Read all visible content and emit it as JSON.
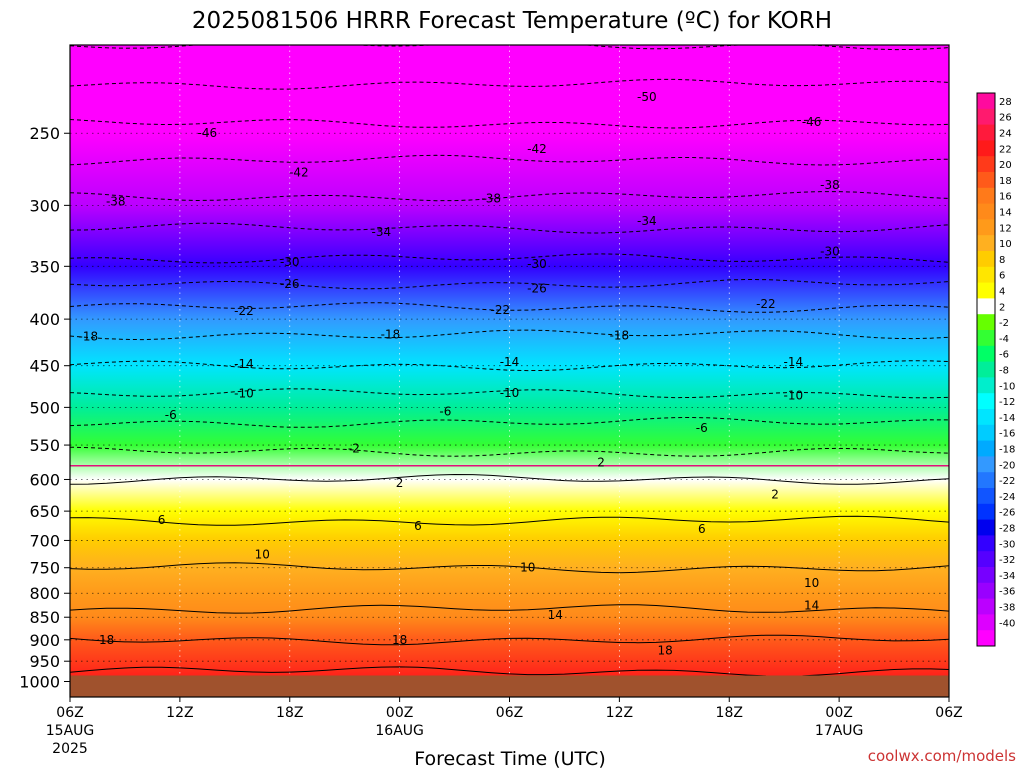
{
  "chart_data": {
    "type": "heatmap",
    "title": "2025081506 HRRR Forecast Temperature (ºC) for KORH",
    "xlabel": "Forecast Time (UTC)",
    "ylabel": "",
    "credit": "coolwx.com/models",
    "y_scale": "log-pressure",
    "ylim_hpa": [
      1040,
      200
    ],
    "y_ticks": [
      "250",
      "300",
      "350",
      "400",
      "450",
      "500",
      "550",
      "600",
      "650",
      "700",
      "750",
      "800",
      "850",
      "900",
      "950",
      "1000"
    ],
    "x_ticks": [
      {
        "hour": 0,
        "label": "06Z",
        "date": "15AUG",
        "year": "2025"
      },
      {
        "hour": 6,
        "label": "12Z"
      },
      {
        "hour": 12,
        "label": "18Z"
      },
      {
        "hour": 18,
        "label": "00Z",
        "date": "16AUG"
      },
      {
        "hour": 24,
        "label": "06Z"
      },
      {
        "hour": 30,
        "label": "12Z"
      },
      {
        "hour": 36,
        "label": "18Z"
      },
      {
        "hour": 42,
        "label": "00Z",
        "date": "17AUG"
      },
      {
        "hour": 48,
        "label": "06Z"
      }
    ],
    "xlim_hours": [
      0,
      48
    ],
    "ground_level_hpa": 985,
    "ground_color": "#a0522d",
    "temperature_profile": [
      {
        "p": 200,
        "t": -54
      },
      {
        "p": 250,
        "t": -45
      },
      {
        "p": 300,
        "t": -37
      },
      {
        "p": 350,
        "t": -29
      },
      {
        "p": 400,
        "t": -20
      },
      {
        "p": 450,
        "t": -14
      },
      {
        "p": 500,
        "t": -8
      },
      {
        "p": 550,
        "t": -3
      },
      {
        "p": 600,
        "t": 2
      },
      {
        "p": 650,
        "t": 5
      },
      {
        "p": 700,
        "t": 8
      },
      {
        "p": 750,
        "t": 10
      },
      {
        "p": 800,
        "t": 12
      },
      {
        "p": 850,
        "t": 15
      },
      {
        "p": 900,
        "t": 18
      },
      {
        "p": 950,
        "t": 21
      },
      {
        "p": 1000,
        "t": 23
      }
    ],
    "contour_labels": [
      {
        "text": "-50",
        "hour": 31.5,
        "p": 228
      },
      {
        "text": "-46",
        "hour": 7.5,
        "p": 250
      },
      {
        "text": "-46",
        "hour": 40.5,
        "p": 243
      },
      {
        "text": "-42",
        "hour": 12.5,
        "p": 276
      },
      {
        "text": "-42",
        "hour": 25.5,
        "p": 260
      },
      {
        "text": "-38",
        "hour": 2.5,
        "p": 297
      },
      {
        "text": "-38",
        "hour": 23,
        "p": 295
      },
      {
        "text": "-38",
        "hour": 41.5,
        "p": 285
      },
      {
        "text": "-34",
        "hour": 17,
        "p": 321
      },
      {
        "text": "-34",
        "hour": 31.5,
        "p": 312
      },
      {
        "text": "-30",
        "hour": 12,
        "p": 346
      },
      {
        "text": "-30",
        "hour": 25.5,
        "p": 348
      },
      {
        "text": "-30",
        "hour": 41.5,
        "p": 337
      },
      {
        "text": "-26",
        "hour": 12,
        "p": 366
      },
      {
        "text": "-26",
        "hour": 25.5,
        "p": 370
      },
      {
        "text": "-22",
        "hour": 9.5,
        "p": 392
      },
      {
        "text": "-22",
        "hour": 23.5,
        "p": 391
      },
      {
        "text": "-22",
        "hour": 38,
        "p": 385
      },
      {
        "text": "-18",
        "hour": 1,
        "p": 418
      },
      {
        "text": "-18",
        "hour": 17.5,
        "p": 416
      },
      {
        "text": "-18",
        "hour": 30,
        "p": 417
      },
      {
        "text": "-14",
        "hour": 9.5,
        "p": 448
      },
      {
        "text": "-14",
        "hour": 24,
        "p": 446
      },
      {
        "text": "-14",
        "hour": 39.5,
        "p": 446
      },
      {
        "text": "-10",
        "hour": 9.5,
        "p": 483
      },
      {
        "text": "-10",
        "hour": 24,
        "p": 482
      },
      {
        "text": "-10",
        "hour": 39.5,
        "p": 485
      },
      {
        "text": "-6",
        "hour": 5.5,
        "p": 510
      },
      {
        "text": "-6",
        "hour": 20.5,
        "p": 505
      },
      {
        "text": "-6",
        "hour": 34.5,
        "p": 527
      },
      {
        "text": "-2",
        "hour": 15.5,
        "p": 555
      },
      {
        "text": "2",
        "hour": 29,
        "p": 575
      },
      {
        "text": "2",
        "hour": 18,
        "p": 605
      },
      {
        "text": "2",
        "hour": 38.5,
        "p": 623
      },
      {
        "text": "6",
        "hour": 5,
        "p": 665
      },
      {
        "text": "6",
        "hour": 19,
        "p": 675
      },
      {
        "text": "6",
        "hour": 34.5,
        "p": 680
      },
      {
        "text": "10",
        "hour": 10.5,
        "p": 725
      },
      {
        "text": "10",
        "hour": 25,
        "p": 750
      },
      {
        "text": "10",
        "hour": 40.5,
        "p": 780
      },
      {
        "text": "14",
        "hour": 26.5,
        "p": 845
      },
      {
        "text": "14",
        "hour": 40.5,
        "p": 825
      },
      {
        "text": "18",
        "hour": 2,
        "p": 900
      },
      {
        "text": "18",
        "hour": 18,
        "p": 900
      },
      {
        "text": "18",
        "hour": 32.5,
        "p": 925
      }
    ],
    "colorbar": {
      "labels": [
        "28",
        "26",
        "24",
        "22",
        "20",
        "18",
        "16",
        "14",
        "12",
        "10",
        "8",
        "6",
        "4",
        "2",
        "-2",
        "-4",
        "-6",
        "-8",
        "-10",
        "-12",
        "-14",
        "-16",
        "-18",
        "-20",
        "-22",
        "-24",
        "-26",
        "-28",
        "-30",
        "-32",
        "-34",
        "-36",
        "-38",
        "-40"
      ],
      "colors": [
        "#ff0a9e",
        "#ff1a6e",
        "#ff1a3c",
        "#ff1a1a",
        "#ff3a1a",
        "#ff5a1a",
        "#ff7a1a",
        "#ff8a1a",
        "#ff9a1a",
        "#ffb020",
        "#ffcc00",
        "#ffe600",
        "#ffff00",
        "#ffffff",
        "#66ff00",
        "#33ff33",
        "#00ff66",
        "#00ee99",
        "#00eecc",
        "#00ffff",
        "#00e5ff",
        "#00ccff",
        "#00aaff",
        "#3399ff",
        "#2277ff",
        "#1155ff",
        "#0033ff",
        "#0000ee",
        "#3300ff",
        "#5500ff",
        "#7700ff",
        "#9900ff",
        "#bb00ff",
        "#dd00ff",
        "#ff00ff"
      ]
    }
  }
}
